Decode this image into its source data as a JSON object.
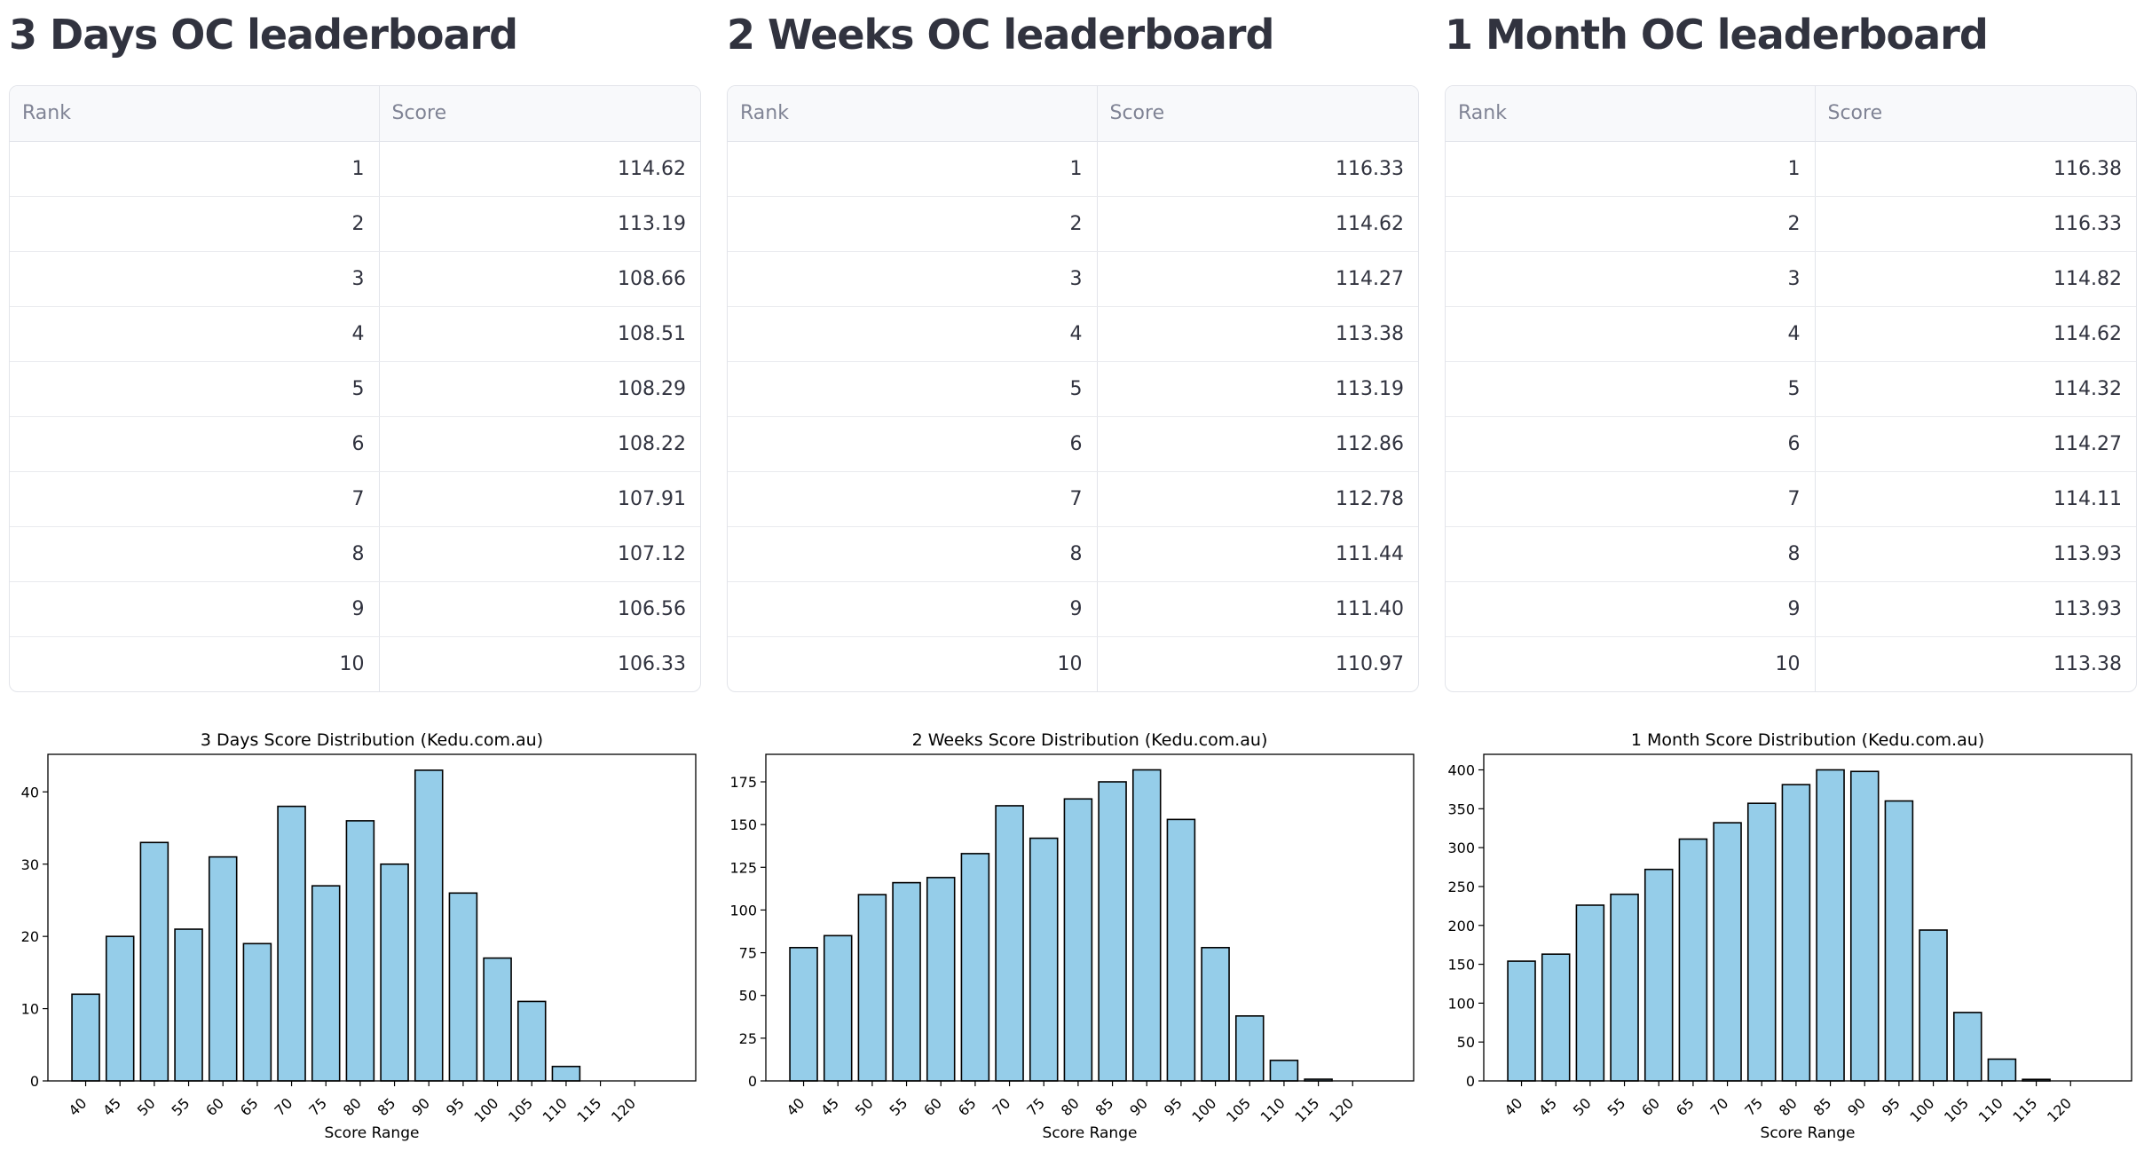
{
  "leaderboards": [
    {
      "title": "3 Days OC leaderboard",
      "columns": [
        "Rank",
        "Score"
      ],
      "rows": [
        [
          "1",
          "114.62"
        ],
        [
          "2",
          "113.19"
        ],
        [
          "3",
          "108.66"
        ],
        [
          "4",
          "108.51"
        ],
        [
          "5",
          "108.29"
        ],
        [
          "6",
          "108.22"
        ],
        [
          "7",
          "107.91"
        ],
        [
          "8",
          "107.12"
        ],
        [
          "9",
          "106.56"
        ],
        [
          "10",
          "106.33"
        ]
      ]
    },
    {
      "title": "2 Weeks OC leaderboard",
      "columns": [
        "Rank",
        "Score"
      ],
      "rows": [
        [
          "1",
          "116.33"
        ],
        [
          "2",
          "114.62"
        ],
        [
          "3",
          "114.27"
        ],
        [
          "4",
          "113.38"
        ],
        [
          "5",
          "113.19"
        ],
        [
          "6",
          "112.86"
        ],
        [
          "7",
          "112.78"
        ],
        [
          "8",
          "111.44"
        ],
        [
          "9",
          "111.40"
        ],
        [
          "10",
          "110.97"
        ]
      ]
    },
    {
      "title": "1 Month OC leaderboard",
      "columns": [
        "Rank",
        "Score"
      ],
      "rows": [
        [
          "1",
          "116.38"
        ],
        [
          "2",
          "116.33"
        ],
        [
          "3",
          "114.82"
        ],
        [
          "4",
          "114.62"
        ],
        [
          "5",
          "114.32"
        ],
        [
          "6",
          "114.27"
        ],
        [
          "7",
          "114.11"
        ],
        [
          "8",
          "113.93"
        ],
        [
          "9",
          "113.93"
        ],
        [
          "10",
          "113.38"
        ]
      ]
    }
  ],
  "chart_data": [
    {
      "type": "bar",
      "title": "3 Days Score Distribution (Kedu.com.au)",
      "xlabel": "Score Range",
      "ylabel": "",
      "categories": [
        "40",
        "45",
        "50",
        "55",
        "60",
        "65",
        "70",
        "75",
        "80",
        "85",
        "90",
        "95",
        "100",
        "105",
        "110",
        "115",
        "120"
      ],
      "values": [
        12,
        20,
        33,
        21,
        31,
        19,
        38,
        27,
        36,
        30,
        43,
        26,
        17,
        11,
        2,
        0,
        0
      ],
      "ylim": [
        0,
        45.2
      ],
      "yticks": [
        0,
        10,
        20,
        30,
        40
      ],
      "bar_color": "#95cde9",
      "edge_color": "#000000",
      "grid": false
    },
    {
      "type": "bar",
      "title": "2 Weeks Score Distribution (Kedu.com.au)",
      "xlabel": "Score Range",
      "ylabel": "",
      "categories": [
        "40",
        "45",
        "50",
        "55",
        "60",
        "65",
        "70",
        "75",
        "80",
        "85",
        "90",
        "95",
        "100",
        "105",
        "110",
        "115",
        "120"
      ],
      "values": [
        78,
        85,
        109,
        116,
        119,
        133,
        161,
        142,
        165,
        175,
        182,
        153,
        78,
        38,
        12,
        1,
        0
      ],
      "ylim": [
        0,
        191.1
      ],
      "yticks": [
        0,
        25,
        50,
        75,
        100,
        125,
        150,
        175
      ],
      "bar_color": "#95cde9",
      "edge_color": "#000000",
      "grid": false
    },
    {
      "type": "bar",
      "title": "1 Month Score Distribution (Kedu.com.au)",
      "xlabel": "Score Range",
      "ylabel": "",
      "categories": [
        "40",
        "45",
        "50",
        "55",
        "60",
        "65",
        "70",
        "75",
        "80",
        "85",
        "90",
        "95",
        "100",
        "105",
        "110",
        "115",
        "120"
      ],
      "values": [
        154,
        163,
        226,
        240,
        272,
        311,
        332,
        357,
        381,
        400,
        398,
        360,
        194,
        88,
        28,
        2,
        0
      ],
      "ylim": [
        0,
        420
      ],
      "yticks": [
        0,
        50,
        100,
        150,
        200,
        250,
        300,
        350,
        400
      ],
      "bar_color": "#95cde9",
      "edge_color": "#000000",
      "grid": false
    }
  ]
}
